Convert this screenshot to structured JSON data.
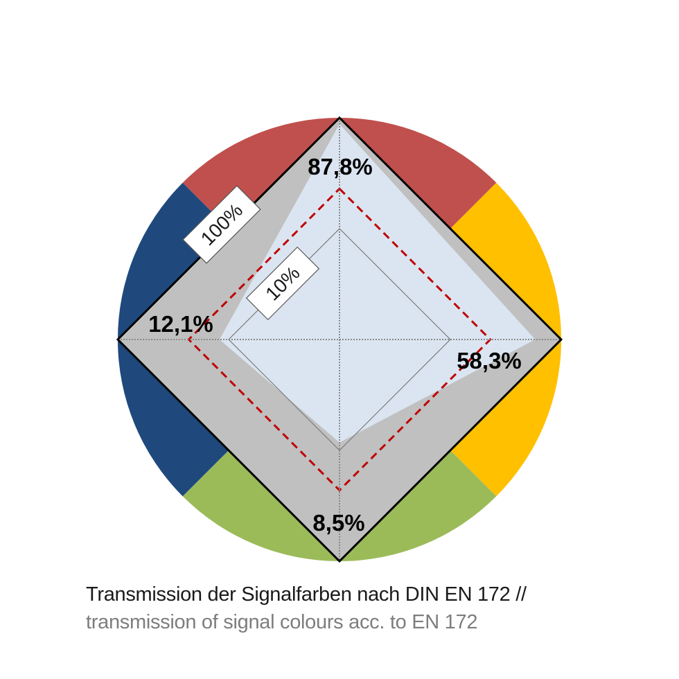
{
  "chart_data": {
    "type": "radar",
    "axes": [
      {
        "color_name": "red",
        "color": "#c0504d",
        "value": 87.8,
        "label": "87,8%"
      },
      {
        "color_name": "yellow",
        "color": "#ffc000",
        "value": 58.3,
        "label": "58,3%"
      },
      {
        "color_name": "green",
        "color": "#9bbb59",
        "value": 8.5,
        "label": "8,5%"
      },
      {
        "color_name": "blue",
        "color": "#1f497d",
        "value": 12.1,
        "label": "12,1%"
      }
    ],
    "scale": "log",
    "range": [
      1,
      100
    ],
    "reference_rings": [
      {
        "value": 100,
        "label": "100%"
      },
      {
        "value": 10,
        "label": "10%"
      }
    ],
    "threshold_line": {
      "style": "dashed",
      "color": "#c00000"
    }
  },
  "caption": {
    "line1": "Transmission der Signalfarben nach DIN EN 172 //",
    "line2": "transmission of signal colours acc. to EN 172"
  },
  "colors": {
    "frame": "#c0c0c0",
    "fill": "#dbe5f1",
    "threshold": "#c00000"
  }
}
